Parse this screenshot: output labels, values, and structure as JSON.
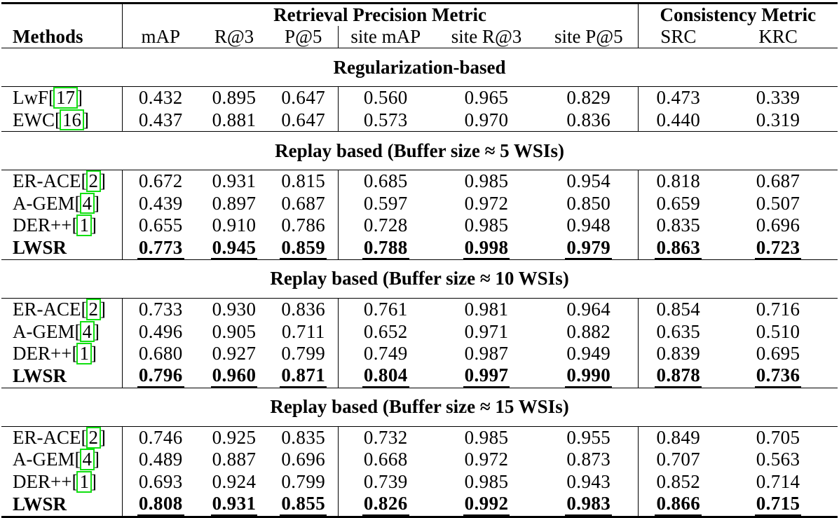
{
  "colors": {
    "citation_border": "#10e010",
    "text": "#000000",
    "background": "#ffffff"
  },
  "table": {
    "methods_header": "Methods",
    "groups": [
      {
        "label": "Retrieval Precision Metric",
        "span": 6
      },
      {
        "label": "Consistency Metric",
        "span": 2
      }
    ],
    "columns": [
      "mAP",
      "R@3",
      "P@5",
      "site mAP",
      "site R@3",
      "site P@5",
      "SRC",
      "KRC"
    ],
    "sections": [
      {
        "banner": "Regularization-based",
        "rows": [
          {
            "method": "LwF",
            "cite": "17",
            "best": false,
            "values": [
              "0.432",
              "0.895",
              "0.647",
              "0.560",
              "0.965",
              "0.829",
              "0.473",
              "0.339"
            ]
          },
          {
            "method": "EWC",
            "cite": "16",
            "best": false,
            "values": [
              "0.437",
              "0.881",
              "0.647",
              "0.573",
              "0.970",
              "0.836",
              "0.440",
              "0.319"
            ]
          }
        ]
      },
      {
        "banner": "Replay based (Buffer size ≈ 5 WSIs)",
        "rows": [
          {
            "method": "ER-ACE",
            "cite": "2",
            "best": false,
            "values": [
              "0.672",
              "0.931",
              "0.815",
              "0.685",
              "0.985",
              "0.954",
              "0.818",
              "0.687"
            ]
          },
          {
            "method": "A-GEM",
            "cite": "4",
            "best": false,
            "values": [
              "0.439",
              "0.897",
              "0.687",
              "0.597",
              "0.972",
              "0.850",
              "0.659",
              "0.507"
            ]
          },
          {
            "method": "DER++",
            "cite": "1",
            "best": false,
            "values": [
              "0.655",
              "0.910",
              "0.786",
              "0.728",
              "0.985",
              "0.948",
              "0.835",
              "0.696"
            ]
          },
          {
            "method": "LWSR",
            "cite": null,
            "best": true,
            "values": [
              "0.773",
              "0.945",
              "0.859",
              "0.788",
              "0.998",
              "0.979",
              "0.863",
              "0.723"
            ]
          }
        ]
      },
      {
        "banner": "Replay based (Buffer size ≈ 10 WSIs)",
        "rows": [
          {
            "method": "ER-ACE",
            "cite": "2",
            "best": false,
            "values": [
              "0.733",
              "0.930",
              "0.836",
              "0.761",
              "0.981",
              "0.964",
              "0.854",
              "0.716"
            ]
          },
          {
            "method": "A-GEM",
            "cite": "4",
            "best": false,
            "values": [
              "0.496",
              "0.905",
              "0.711",
              "0.652",
              "0.971",
              "0.882",
              "0.635",
              "0.510"
            ]
          },
          {
            "method": "DER++",
            "cite": "1",
            "best": false,
            "values": [
              "0.680",
              "0.927",
              "0.799",
              "0.749",
              "0.987",
              "0.949",
              "0.839",
              "0.695"
            ]
          },
          {
            "method": "LWSR",
            "cite": null,
            "best": true,
            "values": [
              "0.796",
              "0.960",
              "0.871",
              "0.804",
              "0.997",
              "0.990",
              "0.878",
              "0.736"
            ]
          }
        ]
      },
      {
        "banner": "Replay based (Buffer size ≈ 15 WSIs)",
        "rows": [
          {
            "method": "ER-ACE",
            "cite": "2",
            "best": false,
            "values": [
              "0.746",
              "0.925",
              "0.835",
              "0.732",
              "0.985",
              "0.955",
              "0.849",
              "0.705"
            ]
          },
          {
            "method": "A-GEM",
            "cite": "4",
            "best": false,
            "values": [
              "0.489",
              "0.887",
              "0.696",
              "0.668",
              "0.972",
              "0.873",
              "0.707",
              "0.563"
            ]
          },
          {
            "method": "DER++",
            "cite": "1",
            "best": false,
            "values": [
              "0.693",
              "0.924",
              "0.799",
              "0.739",
              "0.985",
              "0.943",
              "0.852",
              "0.714"
            ]
          },
          {
            "method": "LWSR",
            "cite": null,
            "best": true,
            "values": [
              "0.808",
              "0.931",
              "0.855",
              "0.826",
              "0.992",
              "0.983",
              "0.866",
              "0.715"
            ]
          }
        ]
      }
    ]
  }
}
